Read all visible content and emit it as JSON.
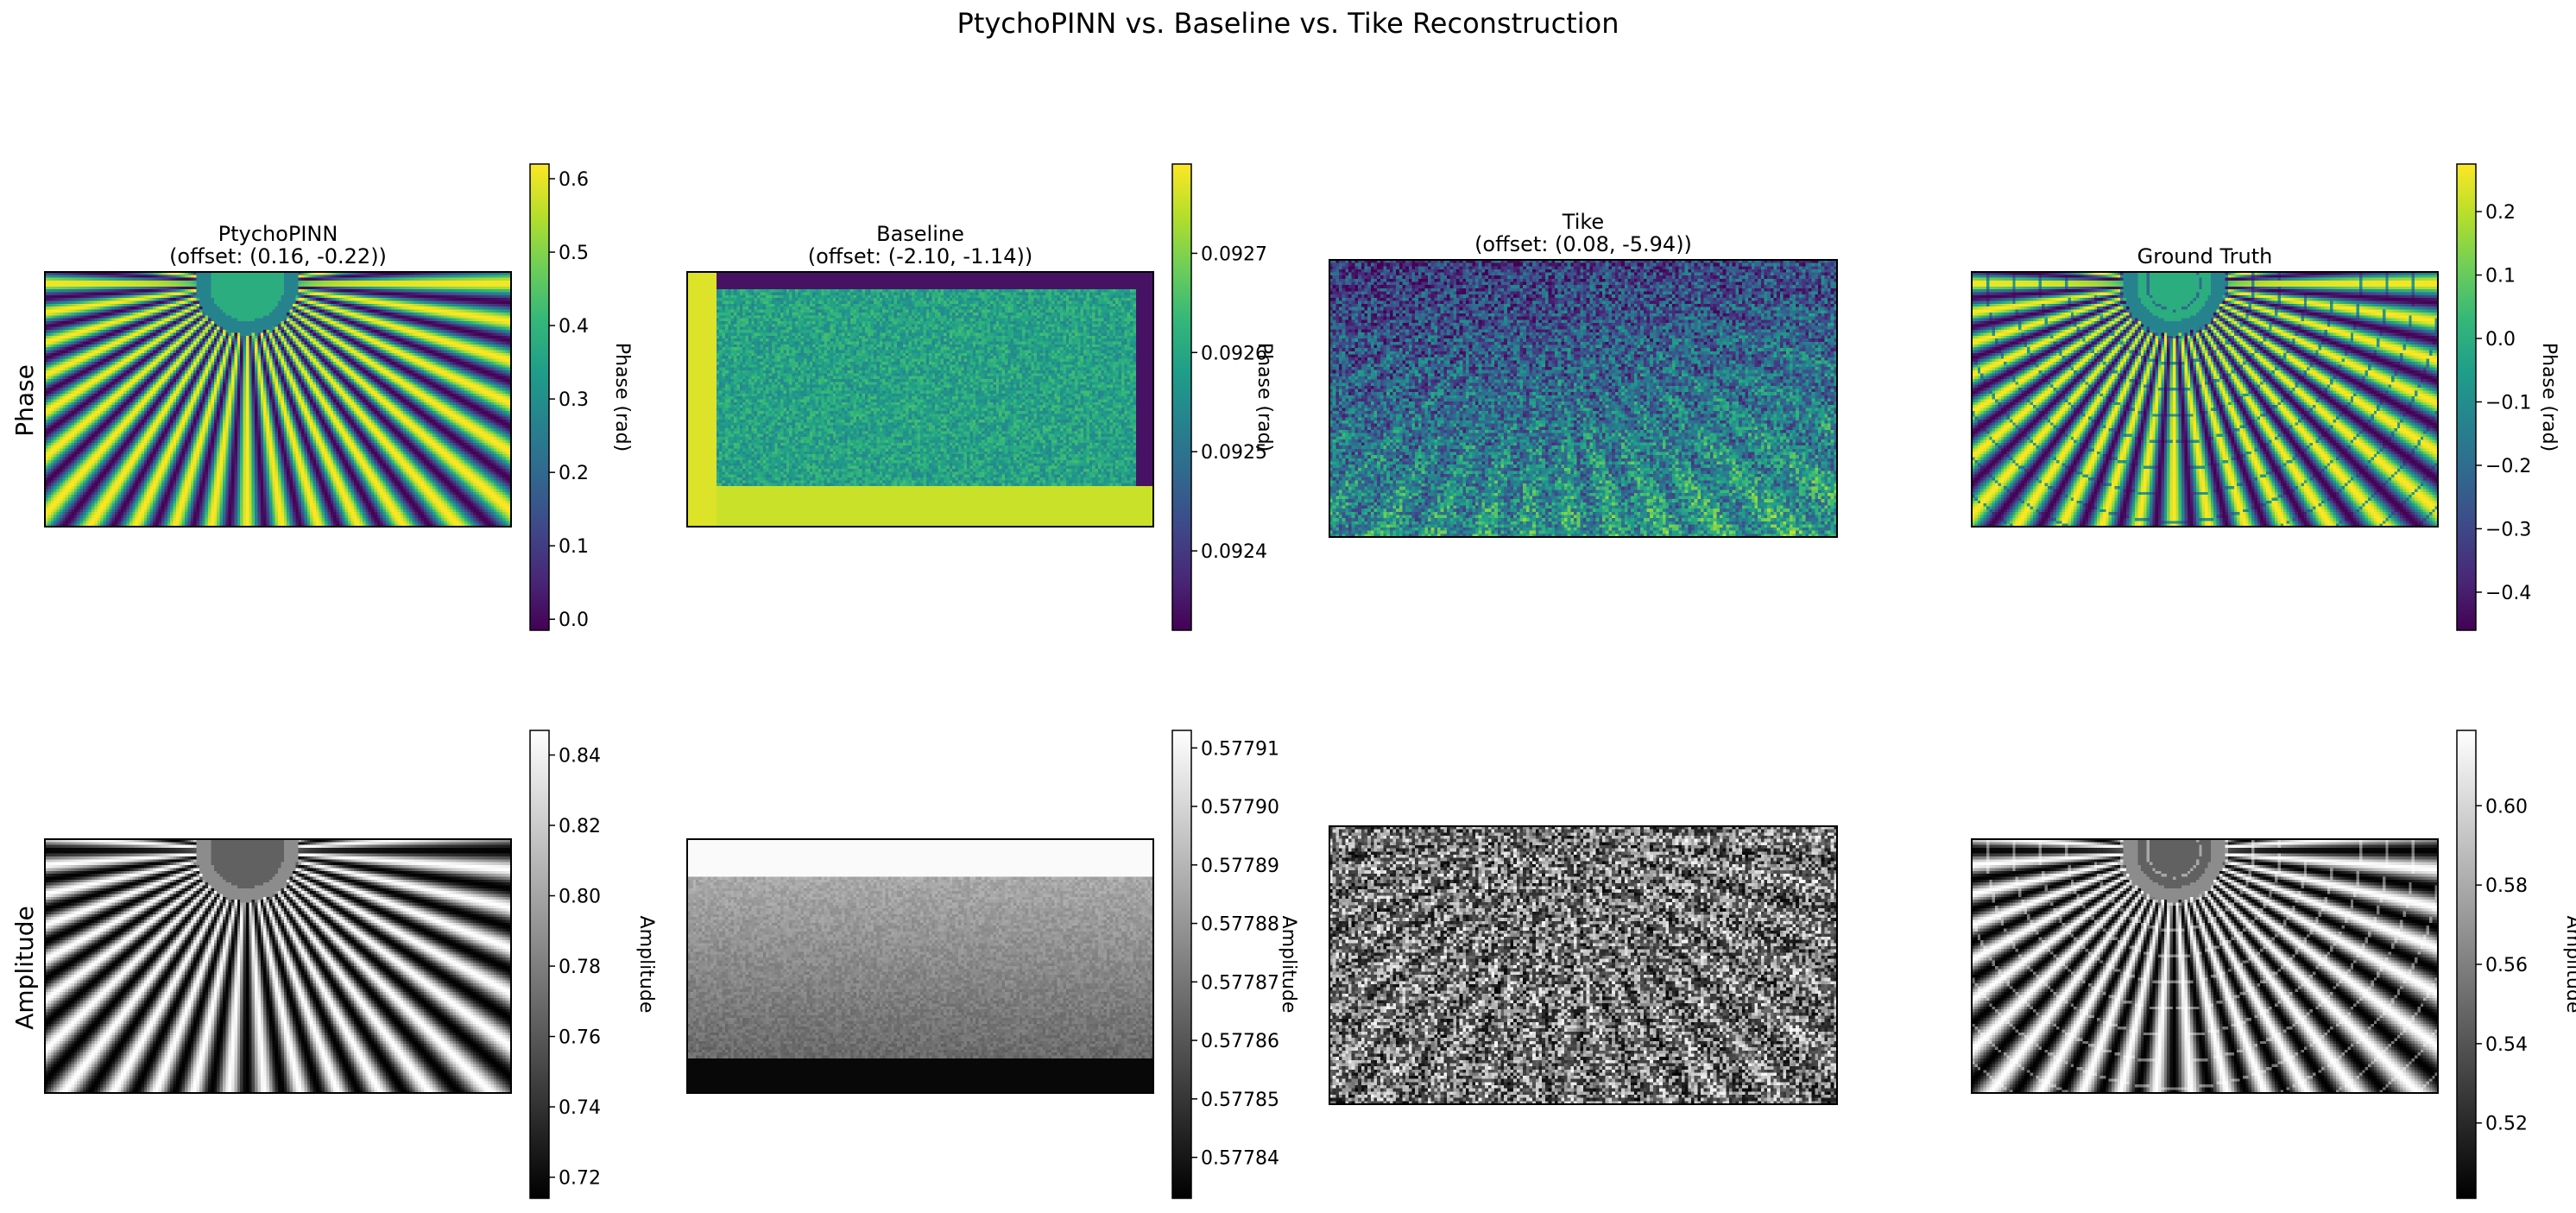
{
  "title": "PtychoPINN vs. Baseline vs. Tike Reconstruction",
  "row_labels": [
    "Phase",
    "Amplitude"
  ],
  "colors": {
    "viridis": [
      "#440154",
      "#482878",
      "#3e4989",
      "#31688e",
      "#26828e",
      "#1f9e89",
      "#35b779",
      "#6ece58",
      "#b5de2b",
      "#fde725"
    ],
    "gray": [
      "#000000",
      "#ffffff"
    ]
  },
  "chart_data": [
    {
      "type": "heatmap",
      "panel": "phase-ptychopinn",
      "title": "PtychoPINN\n(offset: (0.16, -0.22))",
      "colormap": "viridis",
      "pattern": "starburst",
      "colorbar": {
        "label": "Phase (rad)",
        "range": [
          -0.015,
          0.62
        ],
        "ticks": [
          "0.0",
          "0.1",
          "0.2",
          "0.3",
          "0.4",
          "0.5",
          "0.6"
        ],
        "tick_values": [
          0,
          0.1,
          0.2,
          0.3,
          0.4,
          0.5,
          0.6
        ]
      }
    },
    {
      "type": "heatmap",
      "panel": "phase-baseline",
      "title": "Baseline\n(offset: (-2.10, -1.14))",
      "colormap": "viridis",
      "pattern": "block",
      "colorbar": {
        "label": "Phase (rad)",
        "range": [
          0.09232,
          0.09279
        ],
        "ticks": [
          "0.0924",
          "0.0925",
          "0.0926",
          "0.0927"
        ],
        "tick_values": [
          0.0924,
          0.0925,
          0.0926,
          0.0927
        ]
      }
    },
    {
      "type": "heatmap",
      "panel": "phase-tike",
      "title": "Tike\n(offset: (0.08, -5.94))",
      "colormap": "viridis",
      "pattern": "noisy-starburst",
      "colorbar": null
    },
    {
      "type": "heatmap",
      "panel": "phase-ground-truth",
      "title": "Ground Truth",
      "colormap": "viridis",
      "pattern": "starburst-rings",
      "colorbar": {
        "label": "Phase (rad)",
        "range": [
          -0.46,
          0.275
        ],
        "ticks": [
          "0.2",
          "0.1",
          "0.0",
          "−0.1",
          "−0.2",
          "−0.3",
          "−0.4"
        ],
        "tick_values": [
          0.2,
          0.1,
          0.0,
          -0.1,
          -0.2,
          -0.3,
          -0.4
        ]
      }
    },
    {
      "type": "heatmap",
      "panel": "amplitude-ptychopinn",
      "title": "",
      "colormap": "gray",
      "pattern": "starburst",
      "colorbar": {
        "label": "Amplitude",
        "range": [
          0.714,
          0.847
        ],
        "ticks": [
          "0.84",
          "0.82",
          "0.80",
          "0.78",
          "0.76",
          "0.74",
          "0.72"
        ],
        "tick_values": [
          0.84,
          0.82,
          0.8,
          0.78,
          0.76,
          0.74,
          0.72
        ]
      }
    },
    {
      "type": "heatmap",
      "panel": "amplitude-baseline",
      "title": "",
      "colormap": "gray",
      "pattern": "block",
      "colorbar": {
        "label": "Amplitude",
        "range": [
          0.577833,
          0.577913
        ],
        "ticks": [
          "0.57791",
          "0.57790",
          "0.57789",
          "0.57788",
          "0.57787",
          "0.57786",
          "0.57785",
          "0.57784"
        ],
        "tick_values": [
          0.57791,
          0.5779,
          0.57789,
          0.57788,
          0.57787,
          0.57786,
          0.57785,
          0.57784
        ]
      }
    },
    {
      "type": "heatmap",
      "panel": "amplitude-tike",
      "title": "",
      "colormap": "gray",
      "pattern": "noisy-starburst",
      "colorbar": null
    },
    {
      "type": "heatmap",
      "panel": "amplitude-ground-truth",
      "title": "",
      "colormap": "gray",
      "pattern": "starburst-rings",
      "colorbar": {
        "label": "Amplitude",
        "range": [
          0.501,
          0.619
        ],
        "ticks": [
          "0.60",
          "0.58",
          "0.56",
          "0.54",
          "0.52"
        ],
        "tick_values": [
          0.6,
          0.58,
          0.56,
          0.54,
          0.52
        ]
      }
    }
  ]
}
